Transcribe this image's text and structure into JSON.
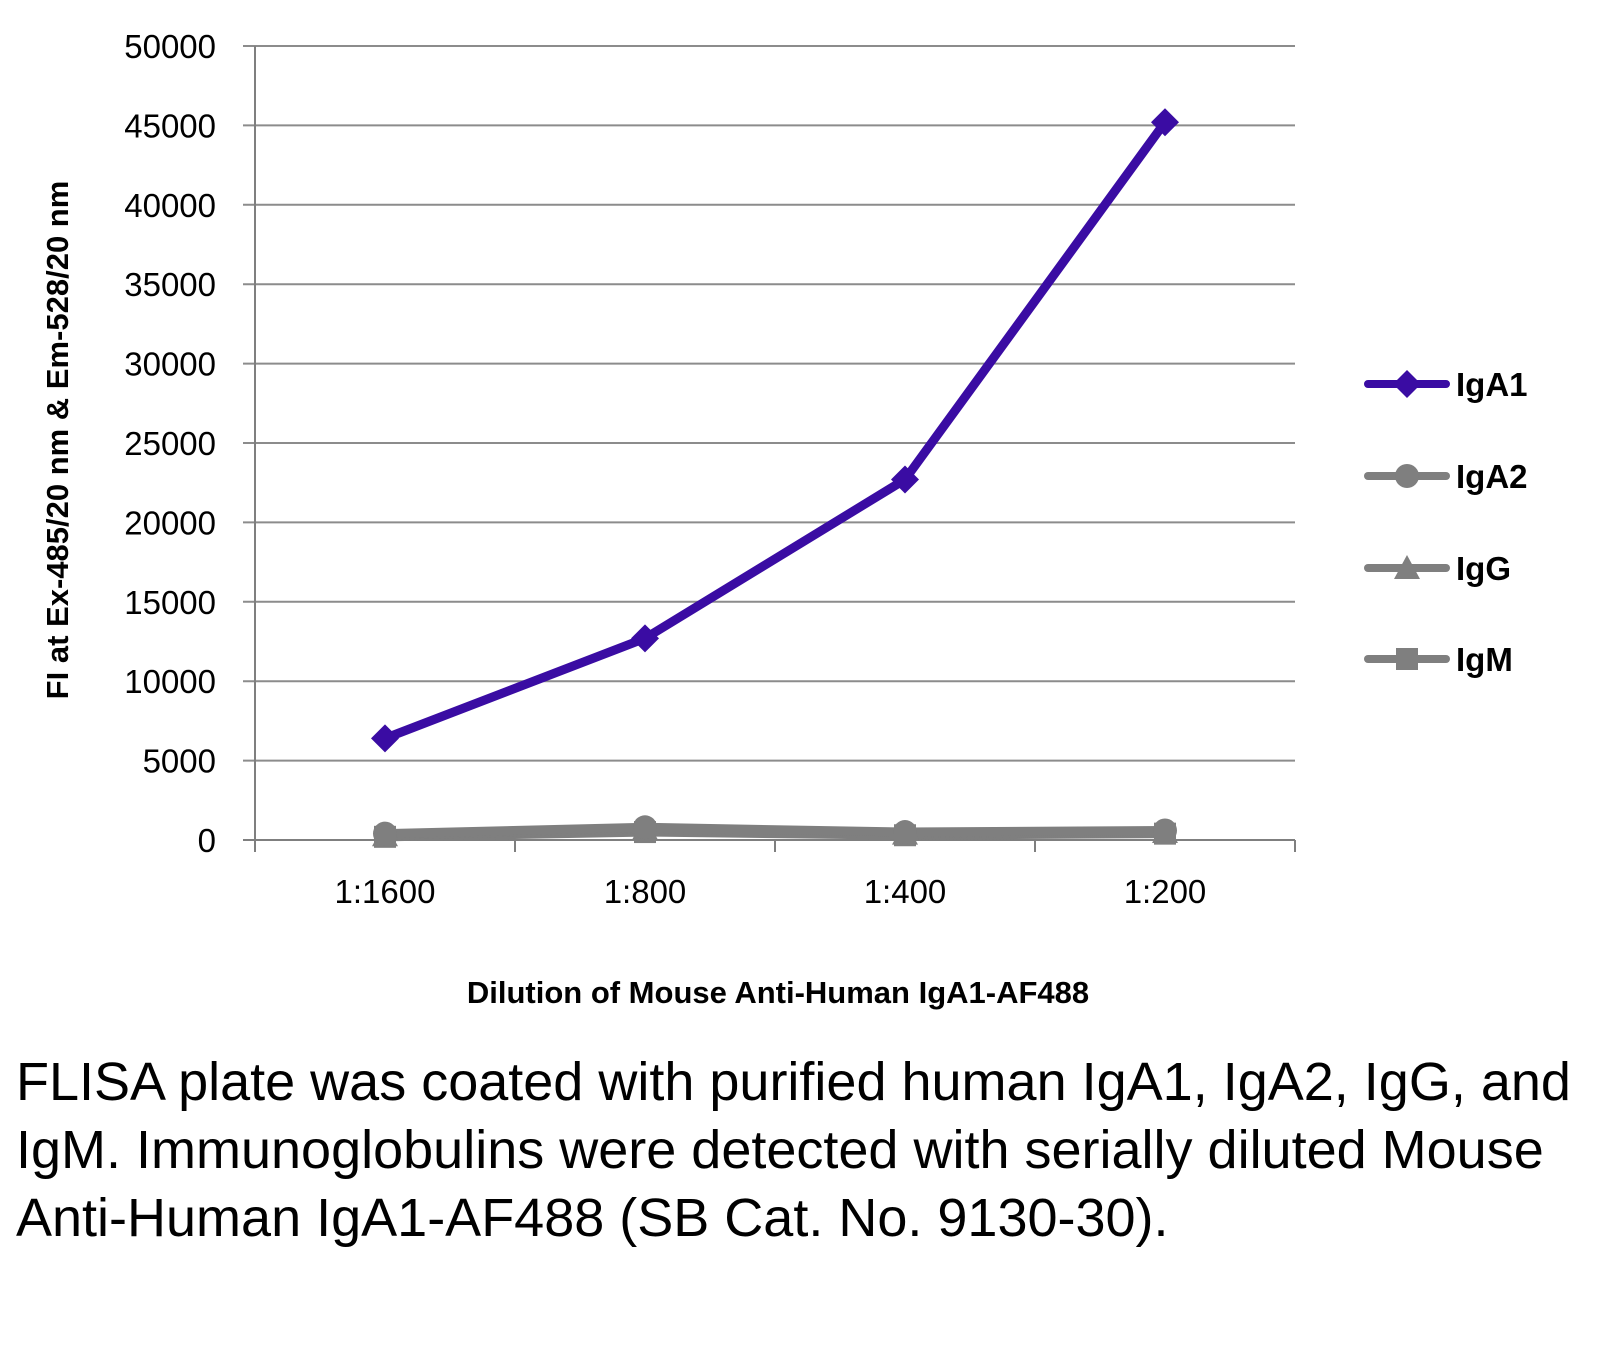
{
  "chart_data": {
    "type": "line",
    "title": "",
    "xlabel": "Dilution of Mouse Anti-Human IgA1-AF488",
    "ylabel": "FI at Ex-485/20 nm & Em-528/20 nm",
    "categories": [
      "1:1600",
      "1:800",
      "1:400",
      "1:200"
    ],
    "ylim": [
      0,
      50000
    ],
    "yticks": [
      0,
      5000,
      10000,
      15000,
      20000,
      25000,
      30000,
      35000,
      40000,
      45000,
      50000
    ],
    "grid": true,
    "legend_position": "right",
    "series": [
      {
        "name": "IgA1",
        "marker": "diamond",
        "color": "#3a0ca3",
        "values": [
          6400,
          12700,
          22700,
          45200
        ]
      },
      {
        "name": "IgA2",
        "marker": "circle",
        "color": "#7f7f7f",
        "values": [
          400,
          800,
          500,
          600
        ]
      },
      {
        "name": "IgG",
        "marker": "triangle",
        "color": "#7f7f7f",
        "values": [
          300,
          700,
          400,
          500
        ]
      },
      {
        "name": "IgM",
        "marker": "square",
        "color": "#7f7f7f",
        "values": [
          200,
          500,
          300,
          400
        ]
      }
    ]
  },
  "caption": "FLISA plate was coated with purified human IgA1, IgA2, IgG, and IgM.  Immunoglobulins were detected with serially diluted Mouse Anti-Human IgA1-AF488 (SB Cat. No. 9130-30).",
  "colors": {
    "grid": "#8c8c8c",
    "axis": "#7f7f7f"
  }
}
